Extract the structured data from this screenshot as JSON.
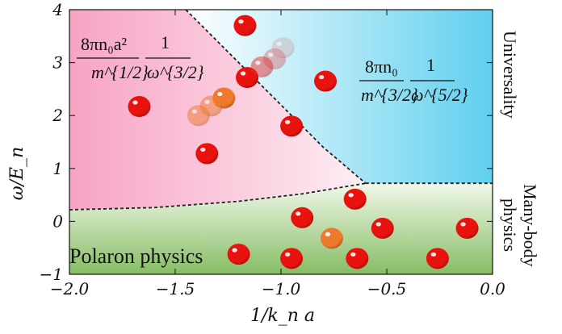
{
  "chart_data": {
    "type": "scatter",
    "xlabel": "1/k_n a",
    "ylabel": "ω/E_n",
    "xlim": [
      -2.0,
      0.0
    ],
    "ylim": [
      -1,
      4
    ],
    "x_ticks": [
      "−2.0",
      "−1.5",
      "−1.0",
      "−0.5",
      "0.0"
    ],
    "x_tick_values": [
      -2.0,
      -1.5,
      -1.0,
      -0.5,
      0.0
    ],
    "y_ticks": [
      "−1",
      "0",
      "1",
      "2",
      "3",
      "4"
    ],
    "y_tick_values": [
      -1,
      0,
      1,
      2,
      3,
      4
    ],
    "grid": false,
    "regions": [
      {
        "name": "pink",
        "color": "#f7a8c6"
      },
      {
        "name": "blue",
        "color": "#6fd3ef"
      },
      {
        "name": "green",
        "color": "#8fc46e"
      }
    ],
    "boundaries": [
      {
        "style": "dashed",
        "points": [
          [
            -1.45,
            4.0
          ],
          [
            -1.2,
            3.0
          ],
          [
            -1.0,
            2.2
          ],
          [
            -0.8,
            1.4
          ],
          [
            -0.6,
            0.72
          ]
        ]
      },
      {
        "style": "dashed",
        "points": [
          [
            -0.6,
            0.72
          ],
          [
            0.0,
            0.72
          ]
        ]
      },
      {
        "style": "dashed",
        "points": [
          [
            -2.0,
            0.22
          ],
          [
            -1.6,
            0.26
          ],
          [
            -1.2,
            0.38
          ],
          [
            -0.9,
            0.52
          ],
          [
            -0.6,
            0.72
          ]
        ]
      }
    ],
    "annotations": {
      "region_pink_formula": {
        "num": "8πn₀a²",
        "den": "m^{1/2}",
        "num2": "1",
        "den2": "ω^{3/2}"
      },
      "region_blue_formula": {
        "num": "8πn₀",
        "den": "m^{3/2}",
        "num2": "1",
        "den2": "ω^{5/2}"
      },
      "region_green_label": "Polaron physics",
      "side_top": "Universality",
      "side_bottom_1": "Many-body",
      "side_bottom_2": "physics"
    },
    "series": [
      {
        "color": "#e8130f",
        "opacity": 1.0,
        "points": [
          [
            -1.17,
            3.7
          ],
          [
            -1.16,
            2.72
          ],
          [
            -0.79,
            2.65
          ],
          [
            -1.67,
            2.17
          ],
          [
            -0.95,
            1.8
          ],
          [
            -1.35,
            1.28
          ],
          [
            -0.65,
            0.42
          ],
          [
            -0.9,
            0.07
          ],
          [
            -0.52,
            -0.13
          ],
          [
            -0.12,
            -0.13
          ],
          [
            -1.2,
            -0.62
          ],
          [
            -0.95,
            -0.7
          ],
          [
            -0.64,
            -0.7
          ],
          [
            -0.26,
            -0.7
          ]
        ]
      },
      {
        "color": "#f07a2c",
        "opacity": 1.0,
        "points": [
          [
            -1.27,
            2.33
          ],
          [
            -0.76,
            -0.32
          ]
        ]
      },
      {
        "color": "#f07a2c",
        "opacity": 0.5,
        "points": [
          [
            -1.33,
            2.18
          ],
          [
            -1.39,
            2.0
          ]
        ]
      },
      {
        "color": "#e03030",
        "opacity": 0.5,
        "points": [
          [
            -1.09,
            2.92
          ]
        ]
      },
      {
        "color": "#e03030",
        "opacity": 0.32,
        "points": [
          [
            -1.03,
            3.07
          ]
        ]
      },
      {
        "color": "#d09090",
        "opacity": 0.3,
        "points": [
          [
            -0.99,
            3.28
          ]
        ]
      }
    ]
  }
}
